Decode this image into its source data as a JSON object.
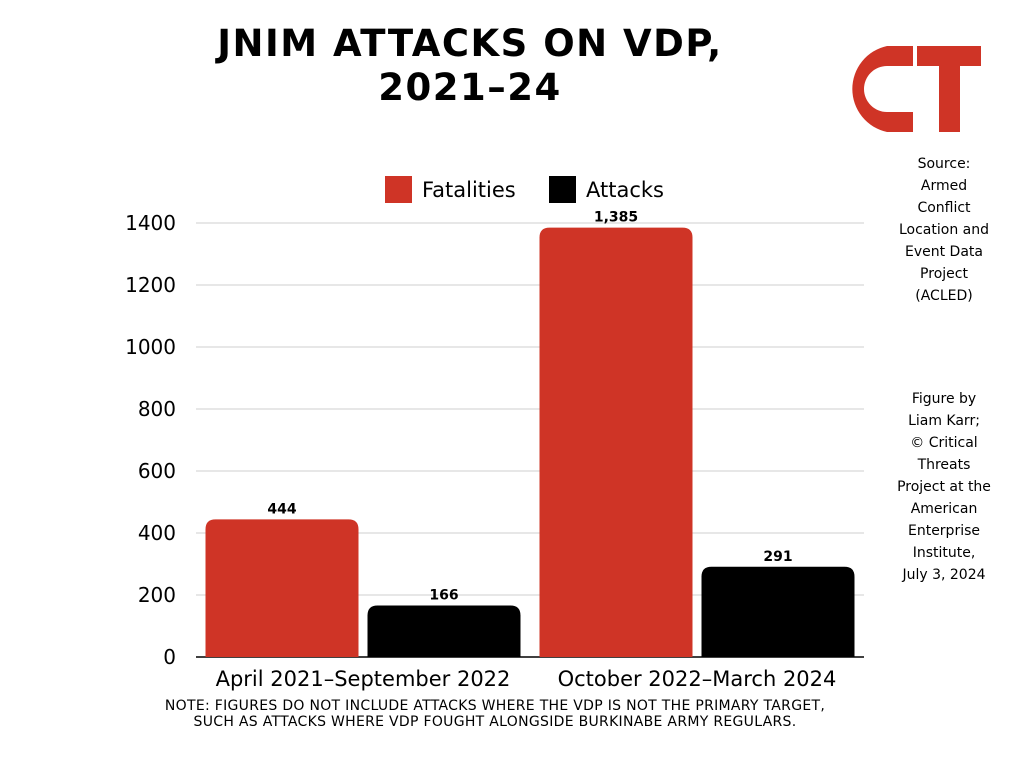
{
  "chart_data": {
    "type": "bar",
    "title": "JNIM ATTACKS ON VDP, 2021–24",
    "categories": [
      "April 2021–September 2022",
      "October 2022–March 2024"
    ],
    "series": [
      {
        "name": "Fatalities",
        "values": [
          444,
          1385
        ],
        "labels": [
          "444",
          "1,385"
        ],
        "color": "#cf3426"
      },
      {
        "name": "Attacks",
        "values": [
          166,
          291
        ],
        "labels": [
          "166",
          "291"
        ],
        "color": "#000000"
      }
    ],
    "ylim": [
      0,
      1400
    ],
    "yticks": [
      "0",
      "200",
      "400",
      "600",
      "800",
      "1000",
      "1200",
      "1400"
    ],
    "grid": true,
    "legend_position": "top-center"
  },
  "logo": {
    "text": "CT",
    "color": "#cf3426"
  },
  "source_note": [
    "Source:",
    "Armed",
    "Conflict",
    "Location and",
    "Event Data",
    "Project",
    "(ACLED)"
  ],
  "credit_note": [
    "Figure by",
    "Liam Karr;",
    "© Critical",
    "Threats",
    "Project at the",
    "American",
    "Enterprise",
    "Institute,",
    "July 3, 2024"
  ],
  "footnote": "NOTE: FIGURES DO NOT INCLUDE ATTACKS WHERE THE VDP IS NOT THE PRIMARY TARGET, SUCH AS ATTACKS WHERE VDP FOUGHT ALONGSIDE BURKINABE ARMY REGULARS."
}
